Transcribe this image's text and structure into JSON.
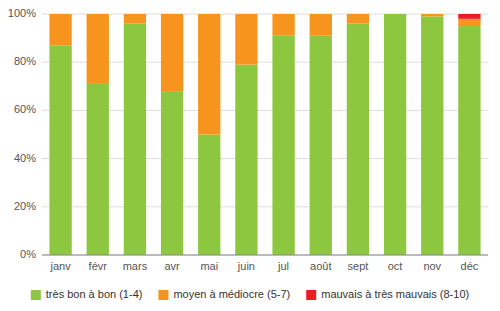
{
  "chart_data": {
    "type": "bar",
    "stacked": true,
    "categories": [
      "janv",
      "févr",
      "mars",
      "avr",
      "mai",
      "juin",
      "jul",
      "août",
      "sept",
      "oct",
      "nov",
      "déc"
    ],
    "series": [
      {
        "name": "très bon à bon (1-4)",
        "color": "#8dc63f",
        "values": [
          87,
          71,
          96,
          68,
          50,
          79,
          91,
          91,
          96,
          100,
          99,
          95
        ]
      },
      {
        "name": "moyen à médiocre (5-7)",
        "color": "#f7941d",
        "values": [
          13,
          29,
          4,
          32,
          50,
          21,
          9,
          9,
          4,
          0,
          1,
          3
        ]
      },
      {
        "name": "mauvais à très mauvais (8-10)",
        "color": "#ed1c24",
        "values": [
          0,
          0,
          0,
          0,
          0,
          0,
          0,
          0,
          0,
          0,
          0,
          2
        ]
      }
    ],
    "ylim": [
      0,
      100
    ],
    "yticks": [
      {
        "value": 0,
        "label": "0%"
      },
      {
        "value": 20,
        "label": "20%"
      },
      {
        "value": 40,
        "label": "40%"
      },
      {
        "value": 60,
        "label": "60%"
      },
      {
        "value": 80,
        "label": "80%"
      },
      {
        "value": 100,
        "label": "100%"
      }
    ],
    "grid": true,
    "legend": "bottom"
  }
}
